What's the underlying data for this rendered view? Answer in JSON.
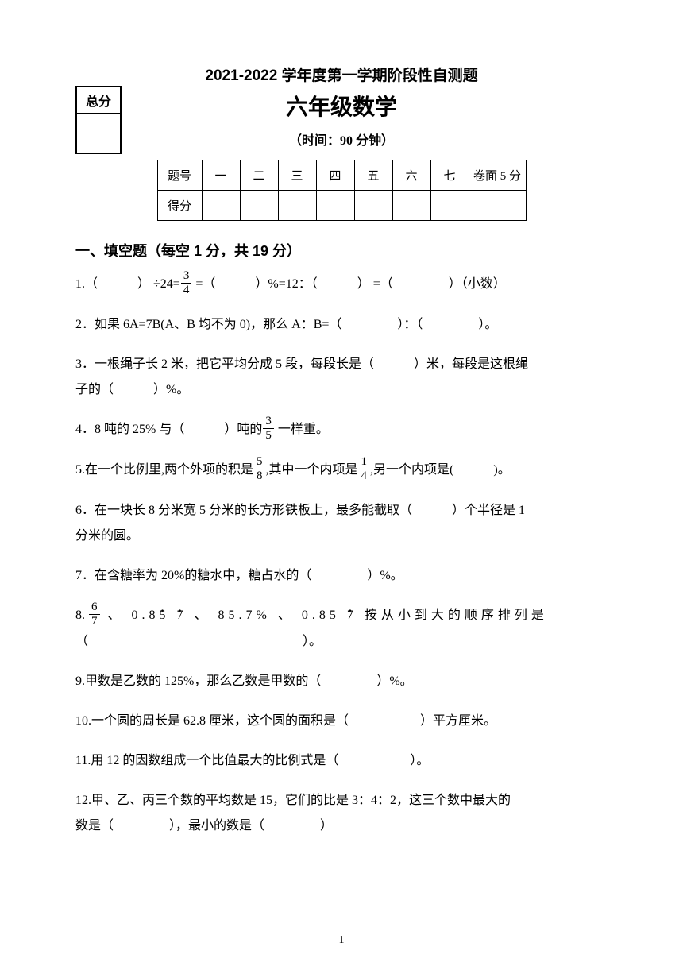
{
  "scorebox": {
    "label": "总分"
  },
  "header": {
    "title1": "2021-2022 学年度第一学期阶段性自测题",
    "title2": "六年级数学",
    "time": "（时间：90 分钟）"
  },
  "score_table": {
    "row1": [
      "题号",
      "一",
      "二",
      "三",
      "四",
      "五",
      "六",
      "七",
      "卷面 5 分"
    ],
    "row2_header": "得分"
  },
  "section1": {
    "title": "一、填空题（每空 1 分，共 19 分）",
    "q1a": "1.（",
    "q1b": "） ÷24=",
    "q1c": " =（",
    "q1d": "）%=12：（",
    "q1e": "） =（",
    "q1f": "）（小数）",
    "q2": "2．如果 6A=7B(A、B 均不为 0)，那么 A：B=（",
    "q2b": "）：（",
    "q2c": "）。",
    "q3": "3．一根绳子长 2 米，把它平均分成 5 段，每段长是（",
    "q3b": "）米，每段是这根绳",
    "q3c": "子的（",
    "q3d": "）%。",
    "q4": "4．8 吨的 25% 与（",
    "q4b": "）吨的",
    "q4c": " 一样重。",
    "q5": "5.在一个比例里,两个外项的积是",
    "q5b": ",其中一个内项是",
    "q5c": ",另一个内项是(",
    "q5d": ")。",
    "q6": "6．在一块长 8 分米宽 5 分米的长方形铁板上，最多能截取（",
    "q6b": "）个半径是 1",
    "q6c": "分米的圆。",
    "q7": "7．在含糖率为 20%的糖水中，糖占水的（",
    "q7b": "）%。",
    "q8a": "8. ",
    "q8b": " 、 0.8",
    "q8c_5": "5",
    "q8c_7": "7",
    "q8d": " 、 85.7% 、 0.85",
    "q8d_7": "7",
    "q8e": " 按从小到大的顺序排列是",
    "q8f": "（",
    "q8g": "）。",
    "q9": "9.甲数是乙数的 125%，那么乙数是甲数的（",
    "q9b": "）%。",
    "q10": "10.一个圆的周长是 62.8 厘米，这个圆的面积是（",
    "q10b": "）平方厘米。",
    "q11": "11.用 12 的因数组成一个比值最大的比例式是（",
    "q11b": "）。",
    "q12": "12.甲、乙、丙三个数的平均数是 15，它们的比是 3：4：2，这三个数中最大的",
    "q12b": "数是（",
    "q12c": "），最小的数是（",
    "q12d": "）",
    "frac_3_4": {
      "n": "3",
      "d": "4"
    },
    "frac_3_5": {
      "n": "3",
      "d": "5"
    },
    "frac_5_8": {
      "n": "5",
      "d": "8"
    },
    "frac_1_4": {
      "n": "1",
      "d": "4"
    },
    "frac_6_7": {
      "n": "6",
      "d": "7"
    }
  },
  "page_number": "1"
}
